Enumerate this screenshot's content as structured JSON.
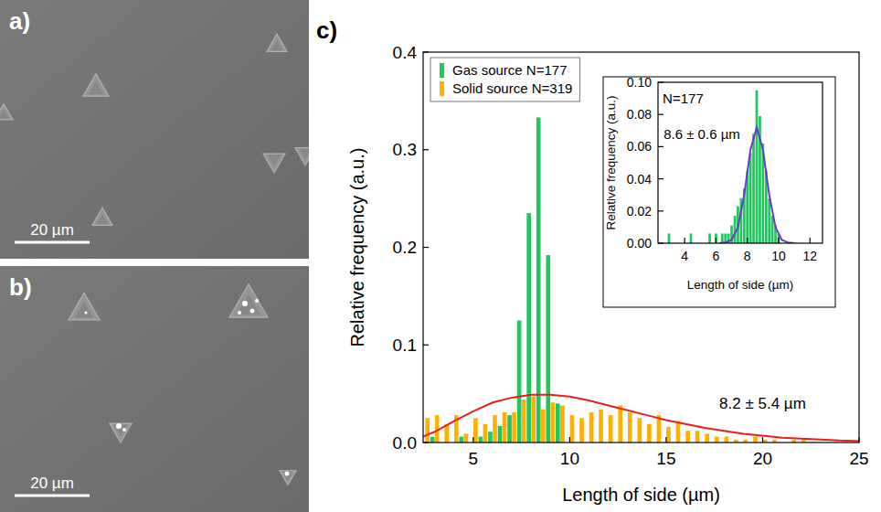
{
  "images": [
    {
      "label": "a)",
      "scale_bar": "20 µm"
    },
    {
      "label": "b)",
      "scale_bar": "20 µm"
    }
  ],
  "chart_data": [
    {
      "type": "bar",
      "panel": "c)",
      "xlabel": "Length of side (µm)",
      "ylabel": "Relative frequency (a.u.)",
      "xlim": [
        2.4,
        25
      ],
      "ylim": [
        0,
        0.4
      ],
      "xticks": [
        5,
        10,
        15,
        20,
        25
      ],
      "yticks": [
        {
          "value": 0,
          "label": "0.0"
        },
        0.1,
        0.2,
        0.3,
        0.4
      ],
      "grid": false,
      "legend": "upper left",
      "series": [
        {
          "name": "Gas source N=177",
          "color": "#22c55e",
          "type": "bar",
          "x": [
            3.0,
            4.5,
            5.5,
            6.0,
            6.5,
            7.0,
            7.5,
            8.0,
            8.5,
            9.0,
            9.5
          ],
          "values": [
            0.006,
            0.006,
            0.006,
            0.011,
            0.017,
            0.028,
            0.125,
            0.235,
            0.333,
            0.192,
            0.04
          ]
        },
        {
          "name": "Solid source N=319",
          "color": "#ffb000",
          "type": "bar",
          "x": [
            2.5,
            3.0,
            3.5,
            4.0,
            4.5,
            5.0,
            5.5,
            6.0,
            6.5,
            7.0,
            7.5,
            8.0,
            8.5,
            9.0,
            9.5,
            10.0,
            10.5,
            11.0,
            11.5,
            12.0,
            12.5,
            13.0,
            13.5,
            14.0,
            14.5,
            15.0,
            15.5,
            16.0,
            16.5,
            17.0,
            17.5,
            18.0,
            18.5,
            19.0,
            19.5,
            20.0,
            20.5,
            21.0,
            21.5,
            22.0
          ],
          "values": [
            0.025,
            0.028,
            0.019,
            0.028,
            0.009,
            0.025,
            0.019,
            0.028,
            0.031,
            0.031,
            0.044,
            0.047,
            0.034,
            0.041,
            0.038,
            0.028,
            0.025,
            0.031,
            0.034,
            0.028,
            0.038,
            0.031,
            0.025,
            0.019,
            0.028,
            0.016,
            0.022,
            0.012,
            0.012,
            0.009,
            0.006,
            0.006,
            0.003,
            0.003,
            0.006,
            0.003,
            0.003,
            0,
            0.003,
            0.003
          ]
        },
        {
          "color": "#e8201a",
          "type": "line",
          "x": [
            2.4,
            3,
            4,
            5,
            6,
            7,
            8,
            9,
            10,
            11,
            12,
            13,
            14,
            15,
            16,
            17,
            18,
            19,
            20,
            21,
            22,
            23,
            24,
            25
          ],
          "values": [
            0.006,
            0.011,
            0.022,
            0.032,
            0.041,
            0.046,
            0.049,
            0.049,
            0.047,
            0.043,
            0.038,
            0.033,
            0.028,
            0.023,
            0.019,
            0.015,
            0.012,
            0.009,
            0.007,
            0.005,
            0.004,
            0.003,
            0.002,
            0.0015
          ]
        }
      ],
      "annotations": [
        {
          "text": "8.2 ± 5.4 µm",
          "x": 20,
          "y": 0.04
        }
      ]
    },
    {
      "type": "bar",
      "xlabel": "Length of side (µm)",
      "ylabel": "Relative frequency (a.u.)",
      "xlim": [
        2.3,
        12.8
      ],
      "ylim": [
        0,
        0.1
      ],
      "xticks": [
        4,
        6,
        8,
        10,
        12
      ],
      "yticks": [
        {
          "value": 0,
          "label": "0.00"
        },
        0.02,
        0.04,
        0.06,
        0.08,
        {
          "value": 0.1,
          "label": "0.10"
        }
      ],
      "grid": false,
      "series": [
        {
          "color": "#22c55e",
          "type": "bar",
          "x": [
            3.0,
            4.4,
            5.6,
            6.0,
            6.4,
            6.6,
            6.8,
            7.0,
            7.2,
            7.4,
            7.6,
            7.8,
            8.0,
            8.2,
            8.4,
            8.6,
            8.8,
            9.0,
            9.2,
            9.4,
            9.6,
            9.8,
            10.0
          ],
          "values": [
            0.006,
            0.006,
            0.006,
            0.006,
            0.006,
            0.006,
            0.006,
            0.011,
            0.017,
            0.023,
            0.028,
            0.034,
            0.045,
            0.056,
            0.068,
            0.095,
            0.079,
            0.062,
            0.045,
            0.028,
            0.017,
            0.011,
            0.006
          ]
        },
        {
          "color": "#6a3ad0",
          "type": "line",
          "x": [
            6.2,
            6.6,
            7.0,
            7.4,
            7.8,
            8.2,
            8.6,
            9.0,
            9.4,
            9.8,
            10.2,
            10.6,
            11.0
          ],
          "values": [
            0,
            0.0005,
            0.002,
            0.01,
            0.03,
            0.058,
            0.072,
            0.058,
            0.03,
            0.01,
            0.002,
            0.0005,
            0
          ]
        }
      ],
      "annotations": [
        {
          "text": "N=177",
          "x": 3.9,
          "y": 0.09
        },
        {
          "text": "8.6 ± 0.6 µm",
          "x": 5.1,
          "y": 0.068
        }
      ]
    }
  ]
}
